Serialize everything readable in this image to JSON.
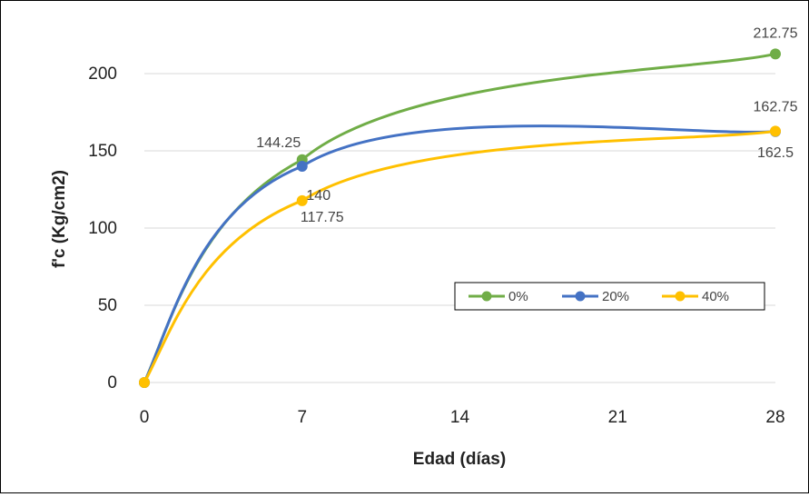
{
  "chart_data": {
    "type": "line",
    "xlabel": "Edad (días)",
    "ylabel": "f'c (Kg/cm2)",
    "x": [
      0,
      7,
      28
    ],
    "x_ticks": [
      "0",
      "7",
      "14",
      "21",
      "28"
    ],
    "y_ticks": [
      "0",
      "50",
      "100",
      "150",
      "200"
    ],
    "xlim": [
      0,
      28
    ],
    "ylim": [
      0,
      220
    ],
    "grid": "horizontal",
    "legend_position": "right-middle",
    "series": [
      {
        "name": "0%",
        "color": "#70ad47",
        "values": [
          0,
          144.25,
          212.75
        ],
        "labels": [
          "",
          "144.25",
          "212.75"
        ]
      },
      {
        "name": "20%",
        "color": "#4472c4",
        "values": [
          0,
          140,
          162.5
        ],
        "labels": [
          "",
          "140",
          "162.5"
        ]
      },
      {
        "name": "40%",
        "color": "#ffc000",
        "values": [
          0,
          117.75,
          162.75
        ],
        "labels": [
          "",
          "117.75",
          "162.75"
        ]
      }
    ]
  }
}
